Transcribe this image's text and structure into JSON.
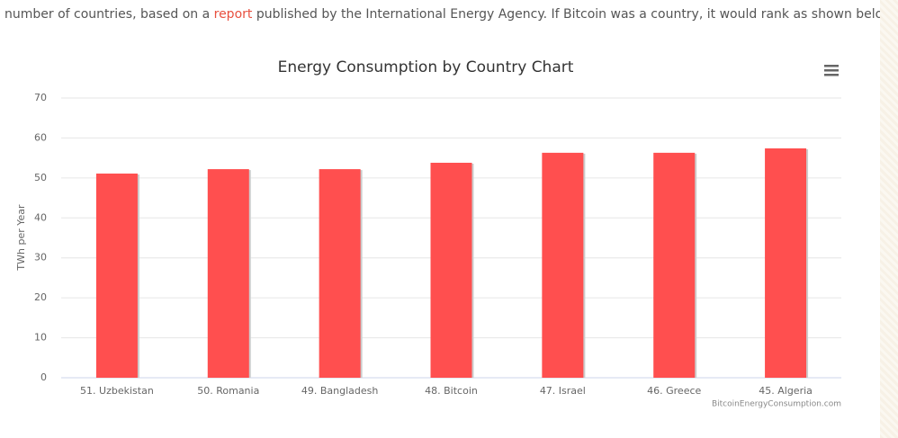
{
  "intro": {
    "before": "number of countries, based on a ",
    "link": "report",
    "after": " published by the International Energy Agency. If Bitcoin was a country, it would rank as shown below."
  },
  "chart_data": {
    "type": "bar",
    "title": "Energy Consumption by Country Chart",
    "y_label": "TWh per Year",
    "credit": "BitcoinEnergyConsumption.com",
    "categories": [
      "51. Uzbekistan",
      "50. Romania",
      "49. Bangladesh",
      "48. Bitcoin",
      "47. Israel",
      "46. Greece",
      "45. Algeria"
    ],
    "values": [
      51.1,
      52.2,
      52.2,
      53.8,
      56.3,
      56.3,
      57.4
    ],
    "color": "#ff4f4f",
    "ylim": [
      0,
      70
    ],
    "yticks": [
      0,
      10,
      20,
      30,
      40,
      50,
      60,
      70
    ],
    "grid": true
  }
}
